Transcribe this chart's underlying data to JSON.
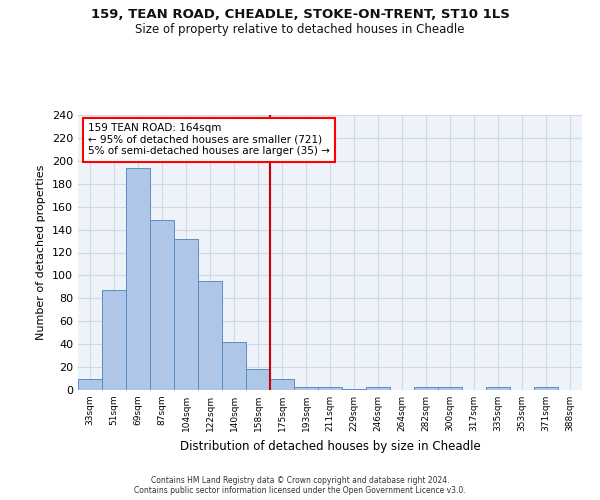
{
  "title_line1": "159, TEAN ROAD, CHEADLE, STOKE-ON-TRENT, ST10 1LS",
  "title_line2": "Size of property relative to detached houses in Cheadle",
  "xlabel": "Distribution of detached houses by size in Cheadle",
  "ylabel": "Number of detached properties",
  "categories": [
    "33sqm",
    "51sqm",
    "69sqm",
    "87sqm",
    "104sqm",
    "122sqm",
    "140sqm",
    "158sqm",
    "175sqm",
    "193sqm",
    "211sqm",
    "229sqm",
    "246sqm",
    "264sqm",
    "282sqm",
    "300sqm",
    "317sqm",
    "335sqm",
    "353sqm",
    "371sqm",
    "388sqm"
  ],
  "values": [
    10,
    87,
    194,
    148,
    132,
    95,
    42,
    18,
    10,
    3,
    3,
    1,
    3,
    0,
    3,
    3,
    0,
    3,
    0,
    3,
    0
  ],
  "bar_color": "#aec6e8",
  "bar_edge_color": "#5a8fc4",
  "grid_color": "#d0d8e8",
  "background_color": "#eef2f9",
  "annotation_box_text": "159 TEAN ROAD: 164sqm\n← 95% of detached houses are smaller (721)\n5% of semi-detached houses are larger (35) →",
  "vline_x_index": 7.5,
  "vline_color": "#cc0000",
  "ylim": [
    0,
    240
  ],
  "yticks": [
    0,
    20,
    40,
    60,
    80,
    100,
    120,
    140,
    160,
    180,
    200,
    220,
    240
  ],
  "footer_line1": "Contains HM Land Registry data © Crown copyright and database right 2024.",
  "footer_line2": "Contains public sector information licensed under the Open Government Licence v3.0."
}
